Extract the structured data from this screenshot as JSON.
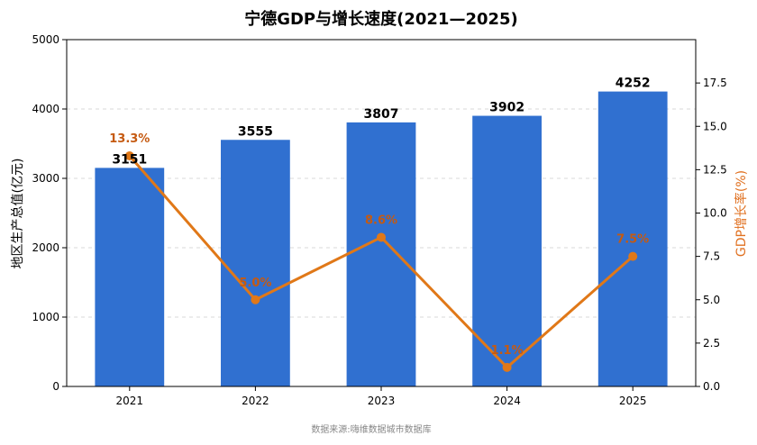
{
  "chart_data": {
    "type": "bar",
    "title": "宁德GDP与增长速度(2021—2025)",
    "categories": [
      "2021",
      "2022",
      "2023",
      "2024",
      "2025"
    ],
    "series": [
      {
        "name": "",
        "type": "bar",
        "axis": "left",
        "values": [
          3151,
          3555,
          3807,
          3902,
          4252
        ],
        "labels": [
          "3151",
          "3555",
          "3807",
          "3902",
          "4252"
        ]
      },
      {
        "name": "",
        "type": "line",
        "axis": "right",
        "values": [
          13.3,
          5.0,
          8.6,
          1.1,
          7.5
        ],
        "labels": [
          "13.3%",
          "5.0%",
          "8.6%",
          "1.1%",
          "7.5%"
        ]
      }
    ],
    "ylabel": "地区生产总值(亿元)",
    "ylabel_right": "GDP增长率(%)",
    "ylim": [
      0,
      5000
    ],
    "ylim_right": [
      0,
      20
    ],
    "yticks": [
      "0",
      "1000",
      "2000",
      "3000",
      "4000",
      "5000"
    ],
    "yticks_right": [
      "0.0",
      "2.5",
      "5.0",
      "7.5",
      "10.0",
      "12.5",
      "15.0",
      "17.5"
    ],
    "grid": true,
    "legend": "none",
    "source": "数据来源:嗨维数据城市数据库",
    "colors": {
      "bar": "#3070d0",
      "line": "#e07818",
      "line_label": "#c55a11",
      "right_axis_label": "#e07020",
      "grid": "#d9d9d9",
      "source": "#888888"
    }
  }
}
